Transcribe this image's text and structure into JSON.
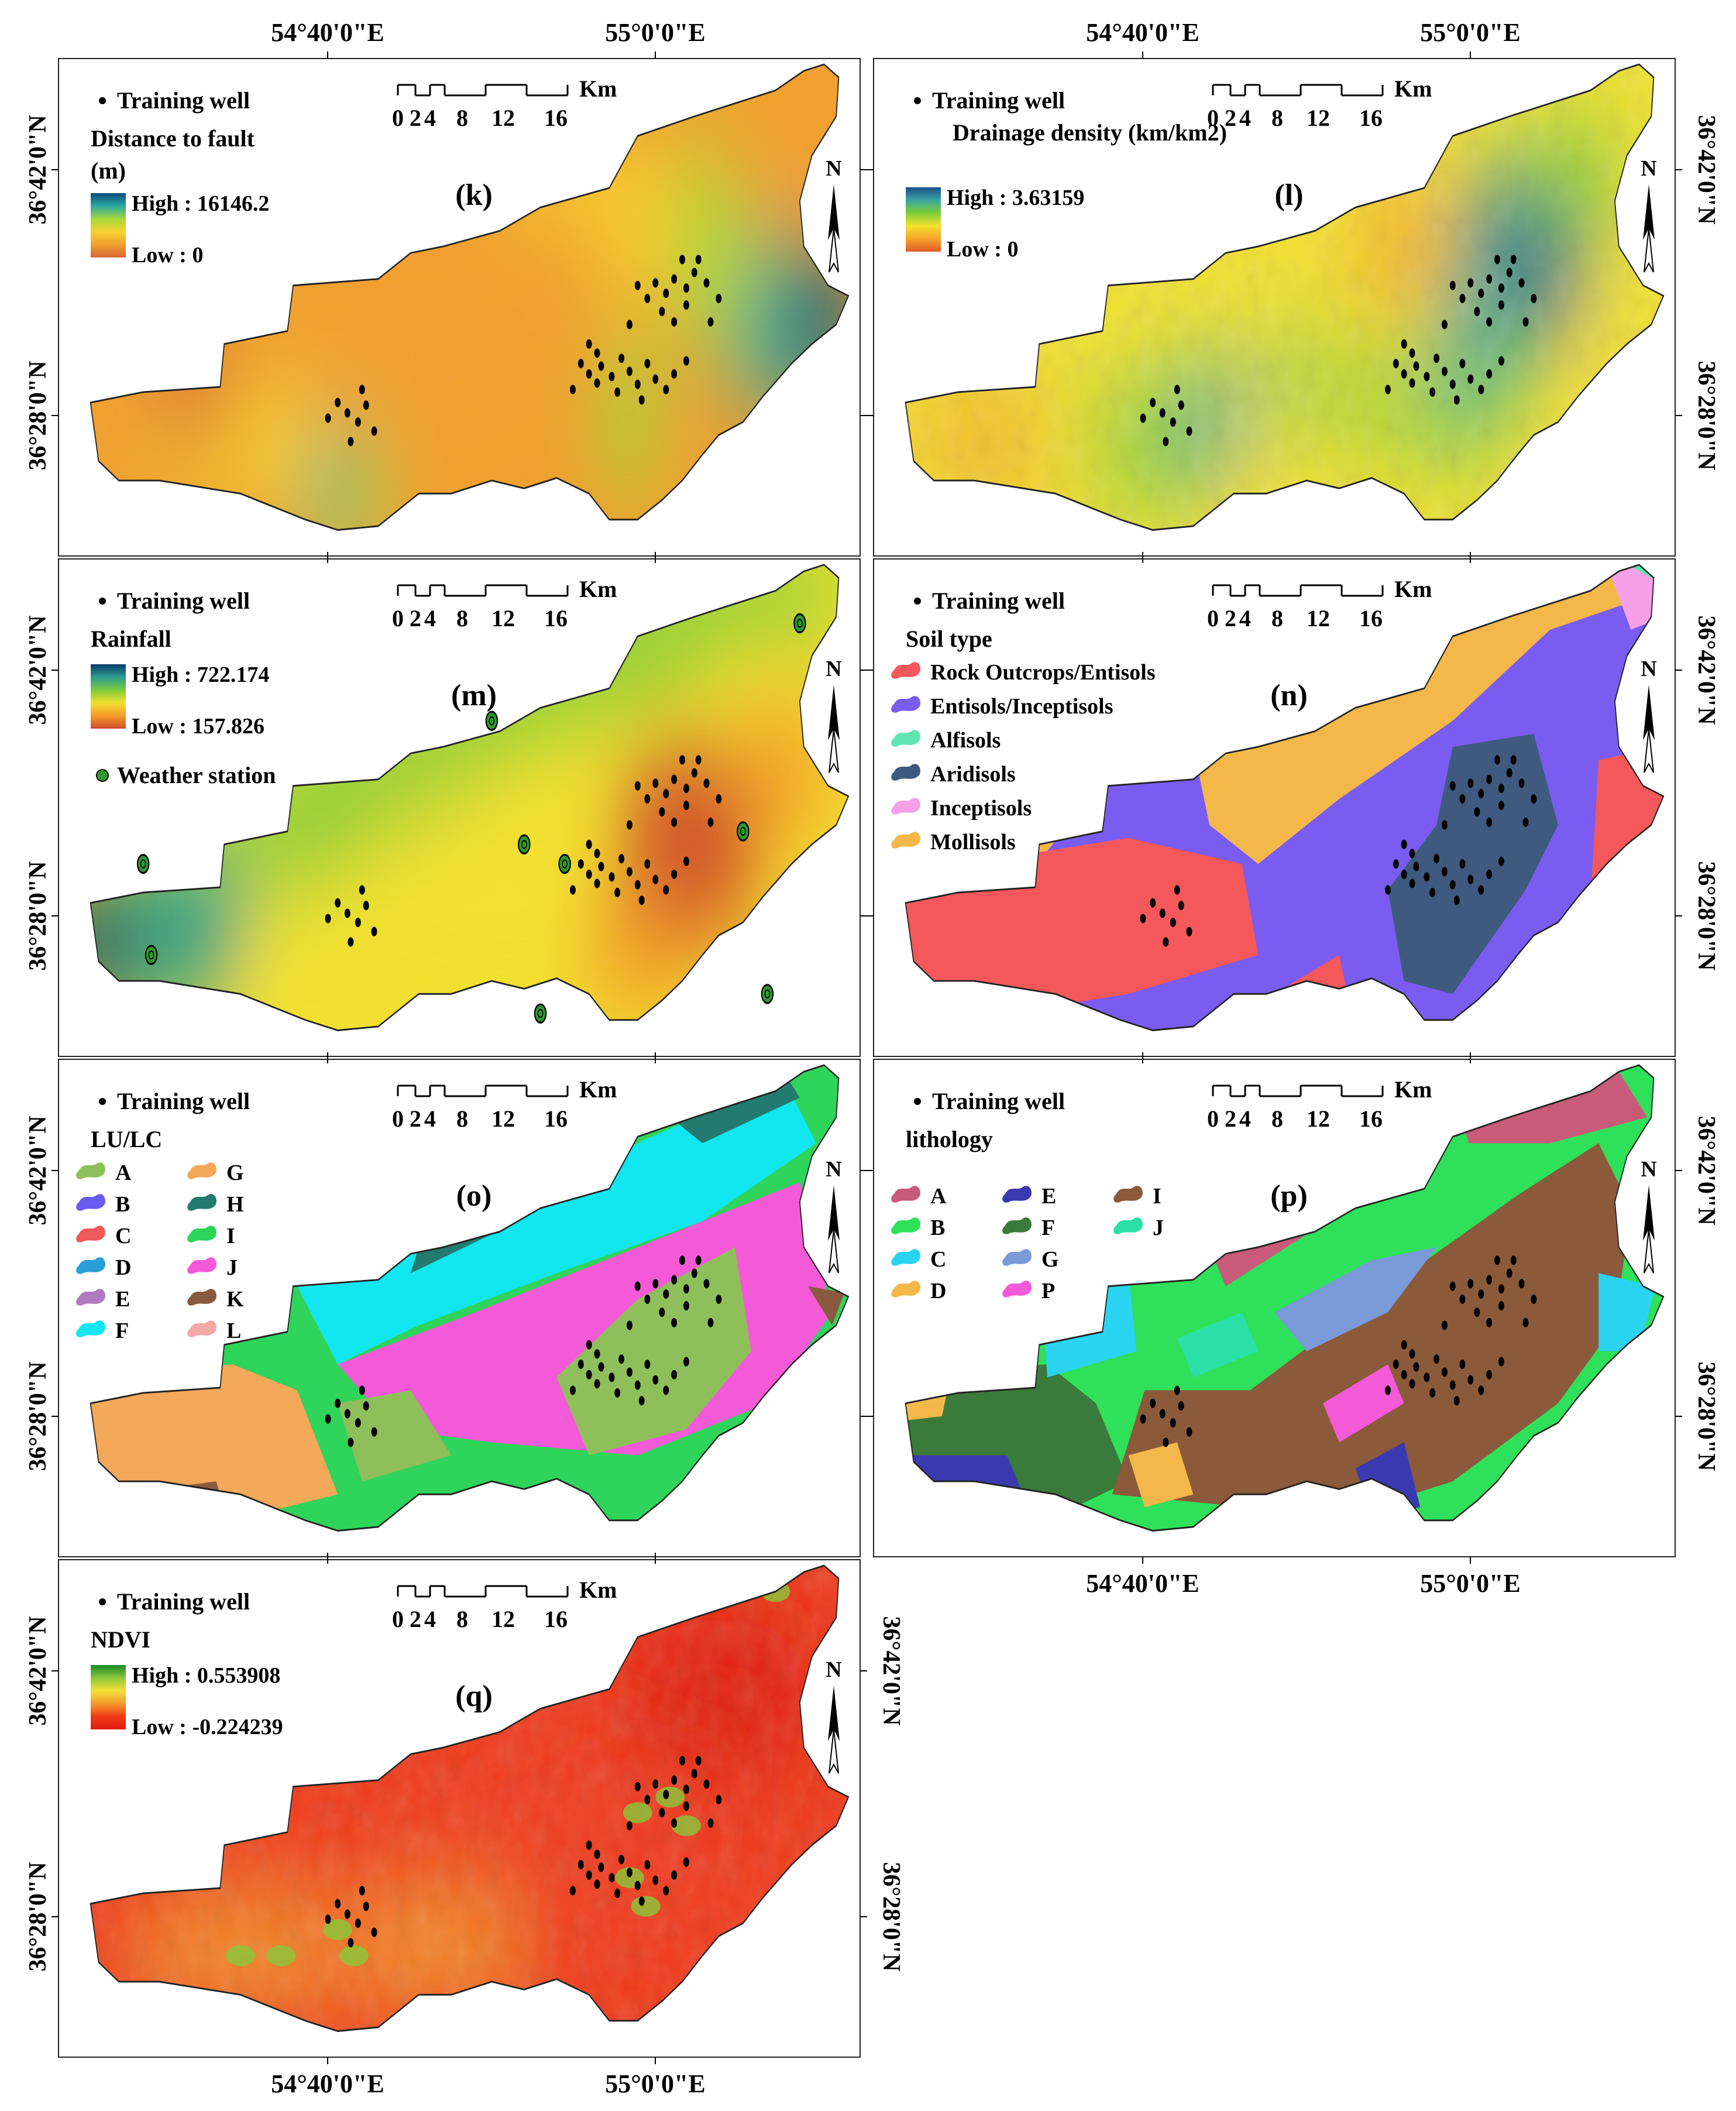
{
  "coords": {
    "lon_a": "54°40'0\"E",
    "lon_b": "55°0'0\"E",
    "lat_a": "36°42'0\"N",
    "lat_b": "36°28'0\"N"
  },
  "north_letter": "N",
  "training_well": "Training  well",
  "scale": {
    "unit": "Km",
    "ticks": [
      "0",
      "2",
      "4",
      "8",
      "12",
      "16"
    ]
  },
  "panels": [
    {
      "id": "k",
      "letter": "(k)",
      "title_lines": [
        "Distance to fault",
        "(m)"
      ],
      "high": "High : 16146.2",
      "low": "Low : 0",
      "colors": [
        "#0d4a7a",
        "#2aa8a0",
        "#a6d83a",
        "#f7d230",
        "#f0a030",
        "#d76636"
      ]
    },
    {
      "id": "l",
      "letter": "(l)",
      "title_lines": [
        "Drainage density  (km/km2)"
      ],
      "high": "High : 3.63159",
      "low": "Low : 0",
      "colors": [
        "#1b4f8a",
        "#3aa6a0",
        "#7ccf3a",
        "#f4e22e",
        "#f6a32b",
        "#e35b2a"
      ]
    },
    {
      "id": "m",
      "letter": "(m)",
      "title_lines": [
        "Rainfall"
      ],
      "high": "High : 722.174",
      "low": "Low : 157.826",
      "station": "Weather station",
      "colors": [
        "#0c3a6d",
        "#2a9d8f",
        "#7bcb3c",
        "#f2e030",
        "#f49a2a",
        "#cf4e2a"
      ]
    },
    {
      "id": "n",
      "letter": "(n)",
      "title_lines": [
        "Soil type"
      ],
      "classes": [
        {
          "label": "Rock Outcrops/Entisols",
          "color": "#f4585a"
        },
        {
          "label": "Entisols/Inceptisols",
          "color": "#7b5cf0"
        },
        {
          "label": "Alfisols",
          "color": "#5fe6b0"
        },
        {
          "label": "Aridisols",
          "color": "#3f5a7e"
        },
        {
          "label": "Inceptisols",
          "color": "#f6a0e8"
        },
        {
          "label": "Mollisols",
          "color": "#f4b84a"
        }
      ]
    },
    {
      "id": "o",
      "letter": "(o)",
      "title_lines": [
        "LU/LC"
      ],
      "classes": [
        {
          "label": "A",
          "color": "#8fbf5a"
        },
        {
          "label": "B",
          "color": "#6a5cf0"
        },
        {
          "label": "C",
          "color": "#ef5a5a"
        },
        {
          "label": "D",
          "color": "#2a9fd8"
        },
        {
          "label": "E",
          "color": "#b07ac0"
        },
        {
          "label": "F",
          "color": "#12e6f0"
        },
        {
          "label": "G",
          "color": "#f4a85a"
        },
        {
          "label": "H",
          "color": "#237a6e"
        },
        {
          "label": "I",
          "color": "#2fd45a"
        },
        {
          "label": "J",
          "color": "#f45ad8"
        },
        {
          "label": "K",
          "color": "#8a5a40"
        },
        {
          "label": "L",
          "color": "#f4a8a8"
        }
      ]
    },
    {
      "id": "p",
      "letter": "(p)",
      "title_lines": [
        "lithology"
      ],
      "classes": [
        {
          "label": "A",
          "color": "#c85a7a"
        },
        {
          "label": "B",
          "color": "#2fe05a"
        },
        {
          "label": "C",
          "color": "#2ad4f0"
        },
        {
          "label": "D",
          "color": "#f4b84a"
        },
        {
          "label": "E",
          "color": "#3a3ab0"
        },
        {
          "label": "F",
          "color": "#3a7a3a"
        },
        {
          "label": "G",
          "color": "#7a9ad8"
        },
        {
          "label": "P",
          "color": "#f45ad8"
        },
        {
          "label": "I",
          "color": "#8a5a3a"
        },
        {
          "label": "J",
          "color": "#2ae0a8"
        }
      ]
    },
    {
      "id": "q",
      "letter": "(q)",
      "title_lines": [
        "NDVI"
      ],
      "high": "High : 0.553908",
      "low": "Low : -0.224239",
      "colors": [
        "#1a8a2a",
        "#8ac83a",
        "#f4e03a",
        "#f49a2a",
        "#f03a1a",
        "#e01a10"
      ]
    }
  ]
}
